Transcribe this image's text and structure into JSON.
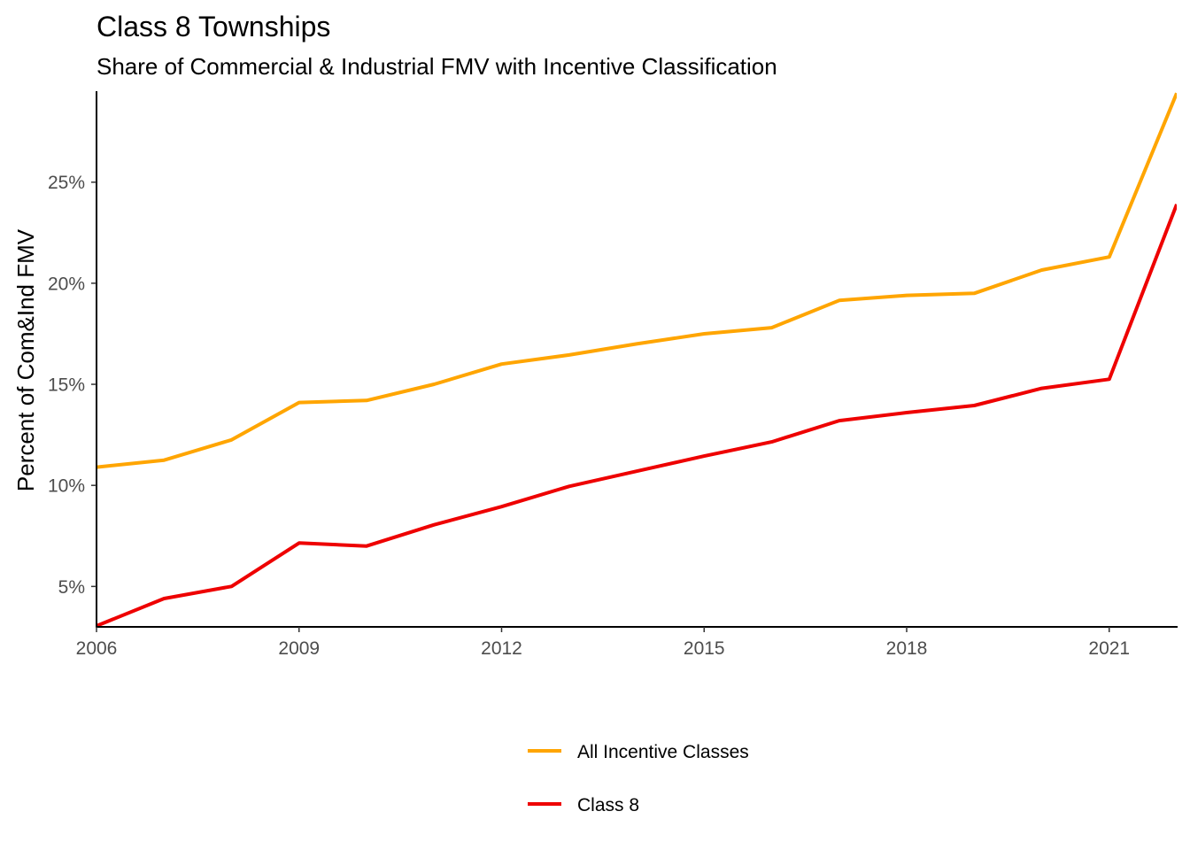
{
  "chart_data": {
    "type": "line",
    "title": "Class 8 Townships",
    "subtitle": "Share of Commercial & Industrial FMV with Incentive Classification",
    "xlabel": "",
    "ylabel": "Percent of Com&Ind FMV",
    "x": [
      2006,
      2007,
      2008,
      2009,
      2010,
      2011,
      2012,
      2013,
      2014,
      2015,
      2016,
      2017,
      2018,
      2019,
      2020,
      2021,
      2022
    ],
    "xlim": [
      2006,
      2022
    ],
    "ylim": [
      3.0,
      29.5
    ],
    "x_ticks": [
      {
        "value": 2006,
        "label": "2006"
      },
      {
        "value": 2009,
        "label": "2009"
      },
      {
        "value": 2012,
        "label": "2012"
      },
      {
        "value": 2015,
        "label": "2015"
      },
      {
        "value": 2018,
        "label": "2018"
      },
      {
        "value": 2021,
        "label": "2021"
      }
    ],
    "y_ticks": [
      {
        "value": 5,
        "label": "5%"
      },
      {
        "value": 10,
        "label": "10%"
      },
      {
        "value": 15,
        "label": "15%"
      },
      {
        "value": 20,
        "label": "20%"
      },
      {
        "value": 25,
        "label": "25%"
      }
    ],
    "grid": false,
    "legend_position": "bottom",
    "series": [
      {
        "name": "All Incentive Classes",
        "color": "#FFA500",
        "values": [
          10.9,
          11.25,
          12.25,
          14.1,
          14.2,
          15.0,
          16.0,
          16.45,
          17.0,
          17.5,
          17.8,
          19.15,
          19.4,
          19.5,
          20.65,
          21.3,
          29.4
        ]
      },
      {
        "name": "Class 8",
        "color": "#EE0000",
        "values": [
          3.05,
          4.4,
          5.0,
          7.15,
          7.0,
          8.05,
          8.95,
          9.95,
          10.7,
          11.45,
          12.15,
          13.2,
          13.6,
          13.95,
          14.8,
          15.25,
          23.9
        ]
      }
    ]
  }
}
